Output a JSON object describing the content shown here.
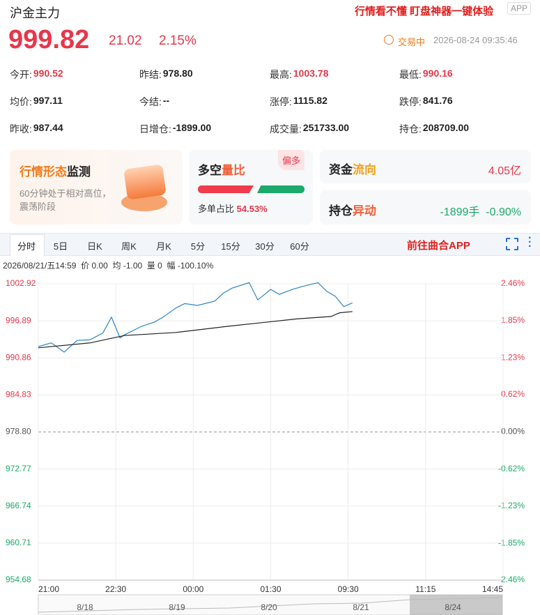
{
  "header": {
    "name": "沪金主力",
    "promo": "行情看不懂 盯盘神器一键体验",
    "app": "APP",
    "price": "999.82",
    "change": "21.02",
    "change_pct": "2.15%",
    "status": "交易中",
    "datetime": "2026-08-24 09:35:46"
  },
  "stats": [
    [
      {
        "label": "今开:",
        "value": "990.52"
      },
      {
        "label": "昨结:",
        "value": "978.80"
      },
      {
        "label": "最高:",
        "value": "1003.78"
      },
      {
        "label": "最低:",
        "value": "990.16"
      }
    ],
    [
      {
        "label": "均价:",
        "value": "997.11"
      },
      {
        "label": "今结:",
        "value": "--"
      },
      {
        "label": "涨停:",
        "value": "1115.82"
      },
      {
        "label": "跌停:",
        "value": "841.76"
      }
    ],
    [
      {
        "label": "昨收:",
        "value": "987.44"
      },
      {
        "label": "日增仓:",
        "value": "-1899.00"
      },
      {
        "label": "成交量:",
        "value": "251733.00"
      },
      {
        "label": "持仓:",
        "value": "208709.00"
      }
    ]
  ],
  "cards": {
    "monitor": {
      "title": [
        "行情形态",
        "监测"
      ],
      "desc": "60分钟处于相对高位，震荡阶段"
    },
    "ratio": {
      "title": [
        "多空",
        "量比"
      ],
      "badge": "偏多",
      "label": "多单占比",
      "value": "54.53%"
    },
    "flow": {
      "title": [
        "资金",
        "流向"
      ],
      "value": "4.05亿"
    },
    "position": {
      "title": [
        "持仓",
        "异动"
      ],
      "value": "-1899手",
      "pct": "-0.90%"
    }
  },
  "tabs": [
    "分时",
    "5日",
    "日K",
    "周K",
    "月K",
    "5分",
    "15分",
    "30分",
    "60分"
  ],
  "link": "前往曲合APP",
  "info": {
    "time": "2026/08/21/五14:59",
    "price": "价 0.00",
    "avg": "均 -1.00",
    "vol": "量 0",
    "range": "幅 -100.10%"
  },
  "chart_data": {
    "type": "line",
    "grid": true,
    "xlim": [
      0,
      540
    ],
    "xticks": [
      {
        "value": 0,
        "label": "21:00"
      },
      {
        "value": 90,
        "label": "22:30"
      },
      {
        "value": 180,
        "label": "00:00"
      },
      {
        "value": 270,
        "label": "01:30"
      },
      {
        "value": 360,
        "label": "09:30"
      },
      {
        "value": 450,
        "label": "11:15"
      },
      {
        "value": 540,
        "label": "14:45"
      }
    ],
    "ylim": [
      954.68,
      1002.92
    ],
    "yticks": [
      1002.92,
      996.89,
      990.86,
      984.83,
      {
        "value": 978.8,
        "label": "978.80"
      },
      972.77,
      966.74,
      960.71,
      954.68
    ],
    "y2lim": [
      -2.46,
      2.46
    ],
    "y2ticks": [
      {
        "value": 2.46,
        "label": "2.46%"
      },
      {
        "value": 1.85,
        "label": "1.85%"
      },
      {
        "value": 1.23,
        "label": "1.23%"
      },
      {
        "value": 0.62,
        "label": "0.62%"
      },
      {
        "value": 0,
        "label": "0.00%"
      },
      {
        "value": -0.62,
        "label": "-0.62%"
      },
      {
        "value": -1.23,
        "label": "-1.23%"
      },
      {
        "value": -1.85,
        "label": "-1.85%"
      },
      {
        "value": -2.46,
        "label": "-2.46%"
      }
    ],
    "series": [
      {
        "color": "#2b86c5",
        "x": [
          0,
          15,
          30,
          45,
          60,
          75,
          85,
          95,
          100,
          120,
          135,
          145,
          160,
          170,
          185,
          205,
          215,
          225,
          245,
          255,
          270,
          280,
          295,
          310,
          325,
          335,
          345,
          355,
          365
        ],
        "values": [
          992.7,
          993.3,
          991.8,
          993.7,
          993.8,
          994.9,
          997.5,
          994.1,
          994.6,
          996.0,
          996.7,
          997.5,
          999.0,
          999.7,
          999.4,
          1000.1,
          1001.4,
          1002.2,
          1003.1,
          1000.3,
          1002.0,
          1001.2,
          1002.0,
          1002.6,
          1003.1,
          1001.7,
          1000.9,
          999.2,
          999.82
        ]
      },
      {
        "color": "#222222",
        "x": [
          0,
          60,
          100,
          160,
          220,
          300,
          340,
          350,
          365
        ],
        "values": [
          992.5,
          993.3,
          994.5,
          995.0,
          996.0,
          997.2,
          997.6,
          998.2,
          998.4
        ]
      }
    ]
  },
  "navigator": {
    "dates": [
      "8/18",
      "8/19",
      "8/20",
      "8/21",
      "8/24"
    ]
  }
}
